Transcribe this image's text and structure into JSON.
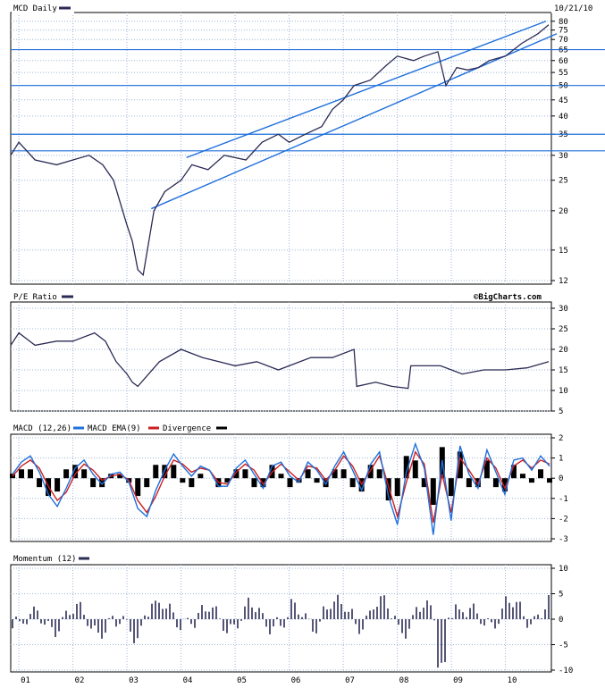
{
  "date_label": "10/21/10",
  "watermark": "©BigCharts.com",
  "colors": {
    "price": "#2b2b55",
    "channel": "#1e6fdc",
    "macd": "#1e6fdc",
    "ema": "#cc1f1f",
    "divergence": "#000000",
    "momentum": "#2b2b55",
    "grid": "#9bb4d6"
  },
  "chart_data": [
    {
      "type": "line",
      "title": "MCD Daily",
      "scale": "log",
      "ylim": [
        12,
        82
      ],
      "yticks": [
        12,
        15,
        20,
        25,
        30,
        35,
        40,
        45,
        50,
        55,
        60,
        65,
        70,
        75,
        80
      ],
      "xticks": [
        "01",
        "02",
        "03",
        "04",
        "05",
        "06",
        "07",
        "08",
        "09",
        "10"
      ],
      "grid": true,
      "series": [
        {
          "x": [
            2000.85,
            2001.0,
            2001.3,
            2001.7,
            2002.0,
            2002.3,
            2002.55,
            2002.75,
            2003.0,
            2003.1,
            2003.2,
            2003.3,
            2003.5,
            2003.7,
            2004.0,
            2004.2,
            2004.5,
            2004.8,
            2005.2,
            2005.5,
            2005.8,
            2006.0,
            2006.3,
            2006.6,
            2006.8,
            2007.0,
            2007.2,
            2007.5,
            2007.8,
            2008.0,
            2008.3,
            2008.5,
            2008.75,
            2008.9,
            2009.1,
            2009.3,
            2009.5,
            2009.7,
            2010.0,
            2010.3,
            2010.6,
            2010.8
          ],
          "values": [
            30,
            33,
            29,
            28,
            29,
            30,
            28,
            25,
            18,
            16,
            13,
            12.5,
            20,
            23,
            25,
            28,
            27,
            30,
            29,
            33,
            35,
            33,
            35,
            37,
            42,
            45,
            50,
            52,
            58,
            62,
            60,
            62,
            64,
            50,
            57,
            56,
            57,
            60,
            62,
            68,
            73,
            78
          ]
        }
      ],
      "annotations": {
        "channel_upper": {
          "x": [
            2004.1,
            2010.75
          ],
          "values": [
            29.5,
            80
          ]
        },
        "channel_lower": {
          "x": [
            2003.45,
            2010.95
          ],
          "values": [
            20.3,
            73
          ]
        },
        "horizontal_lines": [
          35,
          31,
          50,
          65
        ]
      }
    },
    {
      "type": "line",
      "title": "P/E Ratio",
      "ylim": [
        5,
        30
      ],
      "yticks": [
        5,
        10,
        15,
        20,
        25,
        30
      ],
      "grid": true,
      "series": [
        {
          "x": [
            2000.85,
            2001.0,
            2001.3,
            2001.7,
            2002.0,
            2002.4,
            2002.6,
            2002.8,
            2003.0,
            2003.1,
            2003.2,
            2003.6,
            2004.0,
            2004.4,
            2004.7,
            2005.0,
            2005.4,
            2005.8,
            2006.0,
            2006.4,
            2006.8,
            2007.0,
            2007.2,
            2007.25,
            2007.6,
            2007.9,
            2008.2,
            2008.25,
            2008.4,
            2008.8,
            2009.2,
            2009.6,
            2010.0,
            2010.4,
            2010.8
          ],
          "values": [
            21,
            24,
            21,
            22,
            22,
            24,
            22,
            17,
            14,
            12,
            11,
            17,
            20,
            18,
            17,
            16,
            17,
            15,
            16,
            18,
            18,
            19,
            20,
            11,
            12,
            11,
            10.5,
            16,
            16,
            16,
            14,
            15,
            15,
            15.5,
            17
          ]
        }
      ]
    },
    {
      "type": "line",
      "title": "MACD (12,26)",
      "ylim": [
        -3,
        2
      ],
      "yticks": [
        -3,
        -2,
        -1,
        0,
        1,
        2
      ],
      "grid": true,
      "series": [
        {
          "name": "MACD",
          "values": [
            0.2,
            0.8,
            1.1,
            0.3,
            -0.8,
            -1.4,
            -0.5,
            0.5,
            0.9,
            0.2,
            -0.3,
            0.2,
            0.3,
            -0.2,
            -1.5,
            -1.9,
            -0.6,
            0.4,
            1.2,
            0.6,
            0.1,
            0.6,
            0.4,
            -0.4,
            -0.4,
            0.5,
            0.9,
            0.2,
            -0.5,
            0.6,
            0.8,
            0.1,
            -0.2,
            0.8,
            0.4,
            -0.3,
            0.6,
            1.3,
            0.4,
            -0.6,
            0.7,
            1.3,
            -0.9,
            -2.3,
            0.3,
            1.7,
            0.5,
            -2.8,
            0.9,
            -2.1,
            1.6,
            0.2,
            -0.5,
            1.4,
            0.3,
            -0.8,
            0.9,
            1.0,
            0.4,
            1.1,
            0.6
          ]
        },
        {
          "name": "MACD EMA(9)",
          "values": [
            0.1,
            0.6,
            0.9,
            0.5,
            -0.4,
            -1.1,
            -0.7,
            0.2,
            0.7,
            0.4,
            -0.1,
            0.1,
            0.2,
            -0.1,
            -1.1,
            -1.7,
            -0.9,
            0.1,
            0.9,
            0.7,
            0.3,
            0.5,
            0.4,
            -0.2,
            -0.3,
            0.3,
            0.7,
            0.4,
            -0.3,
            0.3,
            0.7,
            0.3,
            -0.1,
            0.6,
            0.5,
            -0.1,
            0.4,
            1.1,
            0.6,
            -0.3,
            0.4,
            1.1,
            -0.4,
            -1.9,
            -0.2,
            1.3,
            0.7,
            -2.2,
            0.2,
            -1.7,
            1.0,
            0.4,
            -0.3,
            1.0,
            0.5,
            -0.5,
            0.6,
            0.9,
            0.5,
            0.9,
            0.7
          ]
        },
        {
          "name": "Divergence"
        }
      ]
    },
    {
      "type": "bar",
      "title": "Momentum (12)",
      "ylim": [
        -10,
        10
      ],
      "yticks": [
        -10,
        -5,
        0,
        5,
        10
      ],
      "grid": true
    }
  ]
}
